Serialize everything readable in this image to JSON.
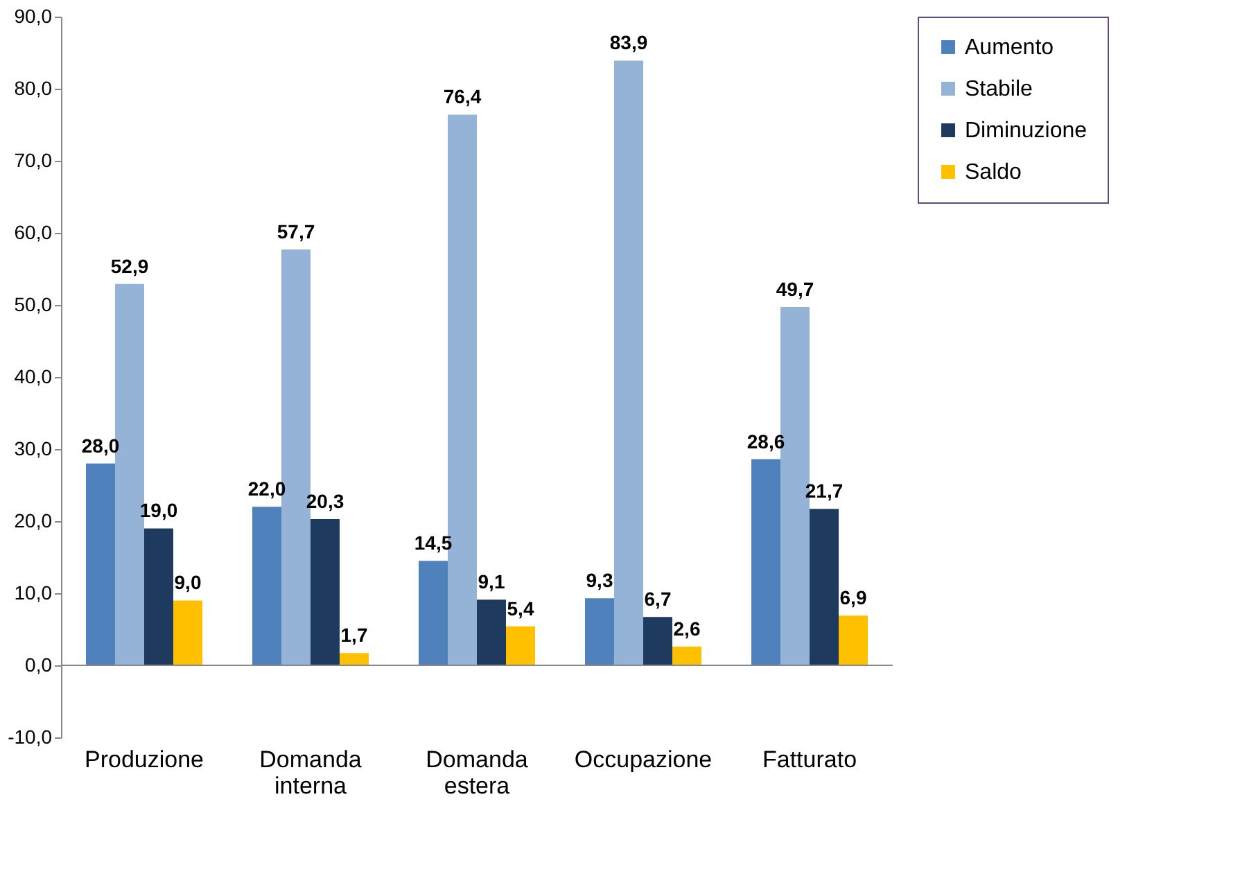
{
  "chart_data": {
    "type": "bar",
    "categories": [
      "Produzione",
      "Domanda interna",
      "Domanda estera",
      "Occupazione",
      "Fatturato"
    ],
    "series": [
      {
        "name": "Aumento",
        "color": "#4f81bd",
        "values": [
          28.0,
          22.0,
          14.5,
          9.3,
          28.6
        ],
        "value_labels": [
          "28,0",
          "22,0",
          "14,5",
          "9,3",
          "28,6"
        ]
      },
      {
        "name": "Stabile",
        "color": "#95b3d7",
        "values": [
          52.9,
          57.7,
          76.4,
          83.9,
          49.7
        ],
        "value_labels": [
          "52,9",
          "57,7",
          "76,4",
          "83,9",
          "49,7"
        ]
      },
      {
        "name": "Diminuzione",
        "color": "#1f3a5f",
        "values": [
          19.0,
          20.3,
          9.1,
          6.7,
          21.7
        ],
        "value_labels": [
          "19,0",
          "20,3",
          "9,1",
          "6,7",
          "21,7"
        ]
      },
      {
        "name": "Saldo",
        "color": "#ffc000",
        "values": [
          9.0,
          1.7,
          5.4,
          2.6,
          6.9
        ],
        "value_labels": [
          "9,0",
          "1,7",
          "5,4",
          "2,6",
          "6,9"
        ]
      }
    ],
    "ylim": [
      -10,
      90
    ],
    "yticks": [
      {
        "value": -10,
        "label": "-10,0"
      },
      {
        "value": 0,
        "label": "0,0"
      },
      {
        "value": 10,
        "label": "10,0"
      },
      {
        "value": 20,
        "label": "20,0"
      },
      {
        "value": 30,
        "label": "30,0"
      },
      {
        "value": 40,
        "label": "40,0"
      },
      {
        "value": 50,
        "label": "50,0"
      },
      {
        "value": 60,
        "label": "60,0"
      },
      {
        "value": 70,
        "label": "70,0"
      },
      {
        "value": 80,
        "label": "80,0"
      },
      {
        "value": 90,
        "label": "90,0"
      }
    ],
    "ref_lines": [
      {
        "axis": "y",
        "value": 0,
        "color": "#888888"
      }
    ],
    "grid": false,
    "legend": "right"
  }
}
